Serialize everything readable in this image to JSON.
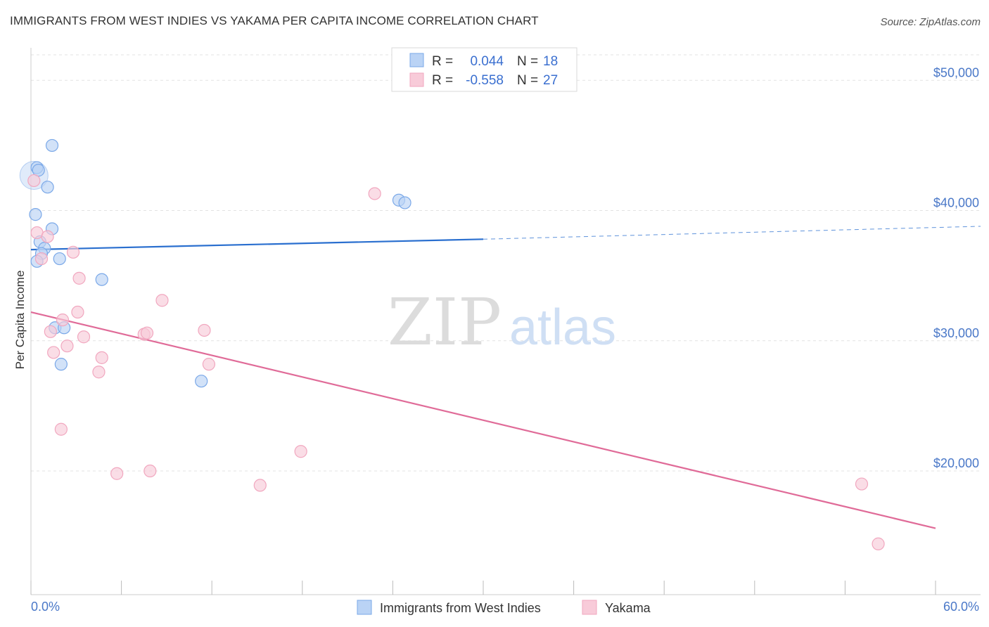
{
  "title": "IMMIGRANTS FROM WEST INDIES VS YAKAMA PER CAPITA INCOME CORRELATION CHART",
  "source": "Source: ZipAtlas.com",
  "watermark": {
    "zip": "ZIP",
    "atlas": "atlas"
  },
  "chart_data": {
    "type": "scatter",
    "ylabel": "Per Capita Income",
    "xlim": [
      0,
      60
    ],
    "ylim": [
      10500,
      52500
    ],
    "x_tick_labels": [
      "0.0%",
      "60.0%"
    ],
    "y_ticks": [
      20000,
      30000,
      40000,
      50000
    ],
    "y_tick_labels": [
      "$20,000",
      "$30,000",
      "$40,000",
      "$50,000"
    ],
    "legend": [
      {
        "r_label": "R =",
        "r_value": "0.044",
        "n_label": "N =",
        "n_value": "18"
      },
      {
        "r_label": "R =",
        "r_value": "-0.558",
        "n_label": "N =",
        "n_value": "27"
      }
    ],
    "series": [
      {
        "name": "Immigrants from West Indies",
        "color": "#7aa8e8",
        "fill": "#bad3f5",
        "line_color": "#2a6fcf",
        "trend": {
          "x0": 0,
          "y0": 37000,
          "x1": 30,
          "y1": 37800,
          "dash_to": 60,
          "dash_y": 38700
        },
        "points": [
          [
            1.4,
            45000
          ],
          [
            0.4,
            43300
          ],
          [
            0.5,
            43100
          ],
          [
            1.1,
            41800
          ],
          [
            0.3,
            39700
          ],
          [
            1.4,
            38600
          ],
          [
            0.6,
            37600
          ],
          [
            0.9,
            37100
          ],
          [
            0.7,
            36700
          ],
          [
            1.9,
            36300
          ],
          [
            0.4,
            36100
          ],
          [
            4.7,
            34700
          ],
          [
            1.6,
            31000
          ],
          [
            2.2,
            31000
          ],
          [
            2.0,
            28200
          ],
          [
            11.3,
            26900
          ],
          [
            24.4,
            40800
          ],
          [
            24.8,
            40600
          ]
        ]
      },
      {
        "name": "Yakama",
        "color": "#f1a7bf",
        "fill": "#f8cbd9",
        "line_color": "#e06b98",
        "trend": {
          "x0": 0,
          "y0": 32200,
          "x1": 60,
          "y1": 15600
        },
        "points": [
          [
            0.2,
            42300
          ],
          [
            0.4,
            38300
          ],
          [
            1.1,
            38000
          ],
          [
            0.7,
            36300
          ],
          [
            2.8,
            36800
          ],
          [
            3.2,
            34800
          ],
          [
            8.7,
            33100
          ],
          [
            3.1,
            32200
          ],
          [
            2.1,
            31600
          ],
          [
            1.3,
            30700
          ],
          [
            7.5,
            30500
          ],
          [
            7.7,
            30600
          ],
          [
            11.5,
            30800
          ],
          [
            3.5,
            30300
          ],
          [
            2.4,
            29600
          ],
          [
            1.5,
            29100
          ],
          [
            4.7,
            28700
          ],
          [
            11.8,
            28200
          ],
          [
            4.5,
            27600
          ],
          [
            2.0,
            23200
          ],
          [
            5.7,
            19800
          ],
          [
            7.9,
            20000
          ],
          [
            15.2,
            18900
          ],
          [
            17.9,
            21500
          ],
          [
            22.8,
            41300
          ],
          [
            55.1,
            19000
          ],
          [
            56.2,
            14400
          ]
        ]
      }
    ]
  }
}
